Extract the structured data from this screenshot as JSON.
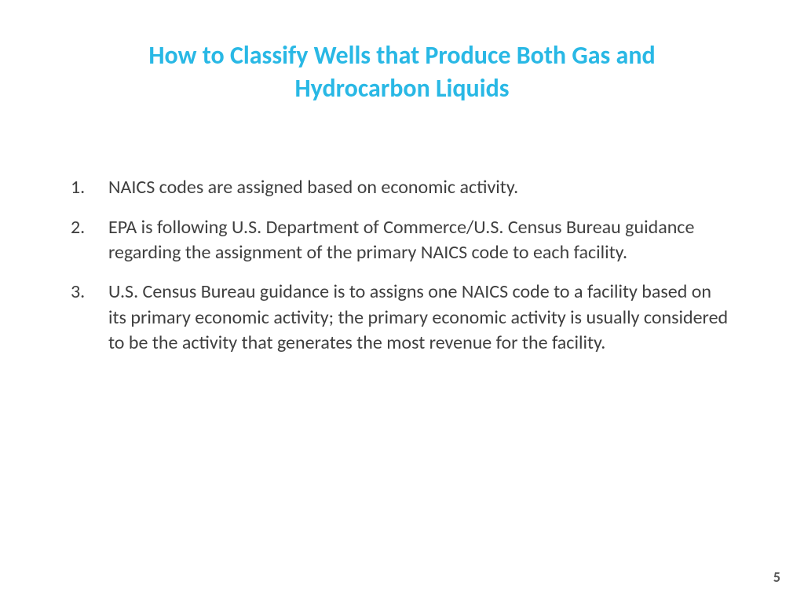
{
  "slide": {
    "title": "How to Classify Wells that Produce Both Gas and Hydrocarbon Liquids",
    "title_color": "#29b8e5",
    "title_fontsize": 32,
    "body_color": "#3f3f3f",
    "body_fontsize": 24,
    "background_color": "#ffffff",
    "items": [
      "NAICS codes are assigned based on economic activity.",
      "EPA is following U.S. Department of Commerce/U.S. Census Bureau guidance regarding the assignment of the primary NAICS code to each facility.",
      "U.S. Census Bureau guidance is to assigns one NAICS code to a facility based on its primary economic activity; the primary economic activity is usually considered to be the activity that generates the most revenue for the facility."
    ],
    "page_number": "5",
    "page_number_color": "#595959"
  }
}
